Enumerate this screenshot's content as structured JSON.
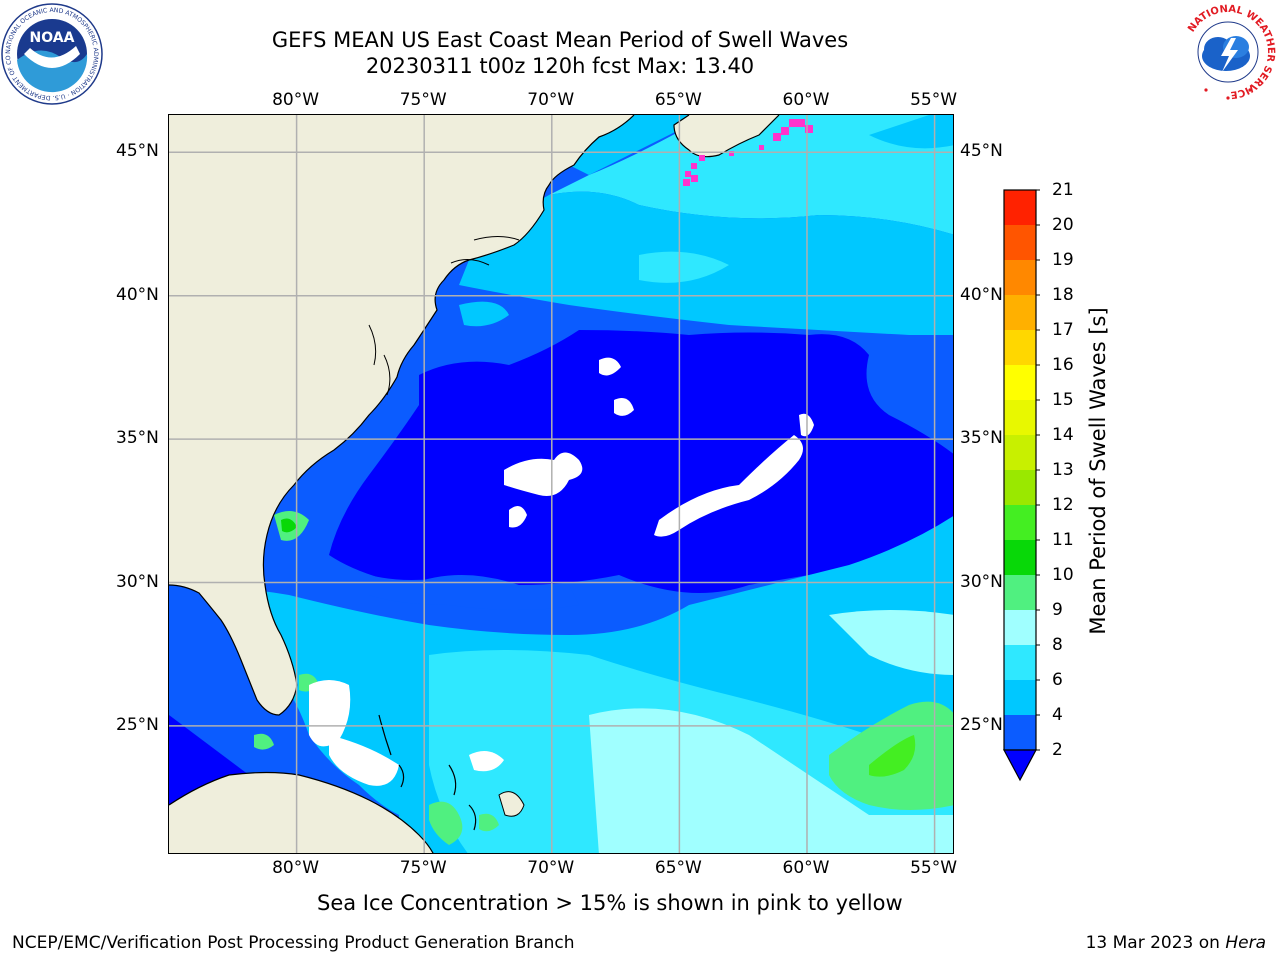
{
  "title": {
    "line1": "GEFS MEAN US East Coast Mean Period of Swell Waves",
    "line2": "20230311 t00z 120h fcst   Max: 13.40"
  },
  "logos": {
    "noaa_text": "NOAA",
    "noaa_ring": "NATIONAL OCEANIC AND ATMOSPHERIC ADMINISTRATION · U.S. DEPARTMENT OF COMMERCE",
    "nws_ring": "NATIONAL WEATHER SERVICE"
  },
  "map": {
    "lon_labels": [
      "80°W",
      "75°W",
      "70°W",
      "65°W",
      "60°W",
      "55°W"
    ],
    "lat_labels": [
      "45°N",
      "40°N",
      "35°N",
      "30°N",
      "25°N"
    ],
    "lon_range": [
      -85,
      -54.2
    ],
    "lat_range": [
      20.5,
      46.3
    ],
    "land_color": "#efeedc",
    "grid_color": "#b0b0b0",
    "max_value": 13.4
  },
  "colorbar": {
    "label": "Mean Period of Swell Waves [s]",
    "ticks": [
      "2",
      "4",
      "6",
      "8",
      "9",
      "10",
      "11",
      "12",
      "13",
      "14",
      "15",
      "16",
      "17",
      "18",
      "19",
      "20",
      "21"
    ],
    "colors": [
      "#0b5cff",
      "#00c8ff",
      "#2fe8ff",
      "#a0ffff",
      "#50f080",
      "#08d808",
      "#44ee22",
      "#9ae800",
      "#c8f000",
      "#e8f800",
      "#ffff00",
      "#ffd700",
      "#ffb000",
      "#ff8800",
      "#ff5500",
      "#ff2200"
    ],
    "extend_color": "#0000ff"
  },
  "palette": {
    "p2": "#0000ff",
    "p4": "#0b5cff",
    "p6": "#00c8ff",
    "p8": "#2fe8ff",
    "p9": "#a0ffff",
    "p10": "#50f080",
    "ice": "#ff33cc"
  },
  "note": "Sea Ice Concentration > 15% is shown in pink to yellow",
  "footer": {
    "left": "NCEP/EMC/Verification Post Processing Product Generation Branch",
    "right_date": "13 Mar 2023 on ",
    "right_host": "Hera"
  }
}
